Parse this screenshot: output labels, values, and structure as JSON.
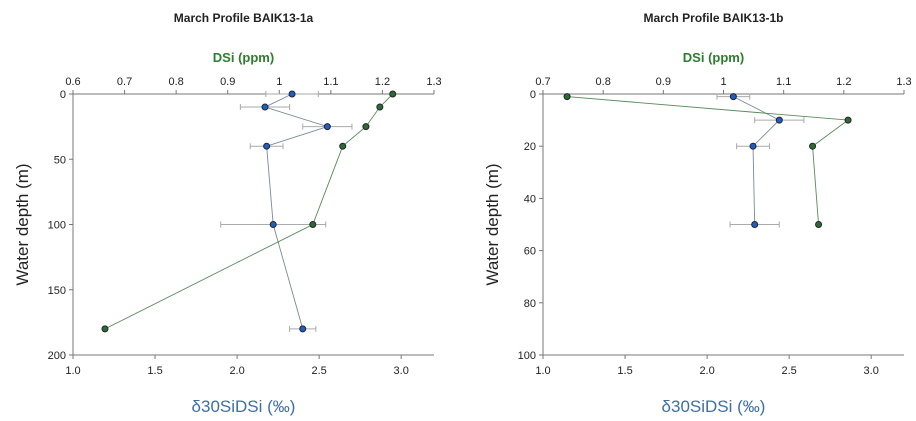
{
  "chart_data": [
    {
      "type": "scatter",
      "title": "March Profile BAIK13-1a",
      "xlabel": "δ30SiDSi (‰)",
      "x2label": "DSi (ppm)",
      "ylabel": "Water depth (m)",
      "xlim": [
        1.0,
        3.2
      ],
      "xticks": [
        {
          "value": 1,
          "label": "1.0"
        },
        1.5,
        {
          "value": 2,
          "label": "2.0"
        },
        2.5,
        {
          "value": 3,
          "label": "3.0"
        }
      ],
      "x2lim": [
        0.6,
        1.3
      ],
      "x2ticks": [
        0.6,
        0.7,
        0.8,
        0.9,
        1,
        1.1,
        1.2,
        1.3
      ],
      "ylim": [
        0,
        200
      ],
      "yticks": [
        0,
        50,
        100,
        150,
        200
      ],
      "invert_y": true,
      "series": [
        {
          "color": "#1f5fbf",
          "axis": "x",
          "x": [
            2.335,
            2.17,
            2.55,
            2.18,
            2.22,
            2.4
          ],
          "values": [
            0,
            10,
            25,
            40,
            100,
            180
          ],
          "errors": [
            0.16,
            0.15,
            0.15,
            0.1,
            0.32,
            0.08
          ]
        },
        {
          "color": "#2e6b2e",
          "axis": "x2",
          "x": [
            1.22,
            1.195,
            1.168,
            1.123,
            1.065,
            0.662
          ],
          "values": [
            0,
            10,
            25,
            40,
            100,
            180
          ]
        }
      ]
    },
    {
      "type": "scatter",
      "title": "March Profile BAIK13-1b",
      "xlabel": "δ30SiDSi (‰)",
      "x2label": "DSi (ppm)",
      "ylabel": "Water depth (m)",
      "xlim": [
        1.0,
        3.2
      ],
      "xticks": [
        {
          "value": 1,
          "label": "1.0"
        },
        1.5,
        {
          "value": 2,
          "label": "2.0"
        },
        2.5,
        {
          "value": 3,
          "label": "3.0"
        }
      ],
      "x2lim": [
        0.7,
        1.3
      ],
      "x2ticks": [
        0.7,
        0.8,
        0.9,
        1,
        1.1,
        1.2,
        1.3
      ],
      "ylim": [
        0,
        100
      ],
      "yticks": [
        0,
        20,
        40,
        60,
        80,
        100
      ],
      "invert_y": true,
      "series": [
        {
          "color": "#1f5fbf",
          "axis": "x",
          "x": [
            2.16,
            2.44,
            2.28,
            2.29
          ],
          "values": [
            1,
            10,
            20,
            50
          ],
          "errors": [
            0.1,
            0.15,
            0.1,
            0.15
          ]
        },
        {
          "color": "#2e6b2e",
          "axis": "x2",
          "x": [
            0.74,
            1.207,
            1.148,
            1.158
          ],
          "values": [
            1,
            10,
            20,
            50
          ]
        }
      ]
    }
  ]
}
